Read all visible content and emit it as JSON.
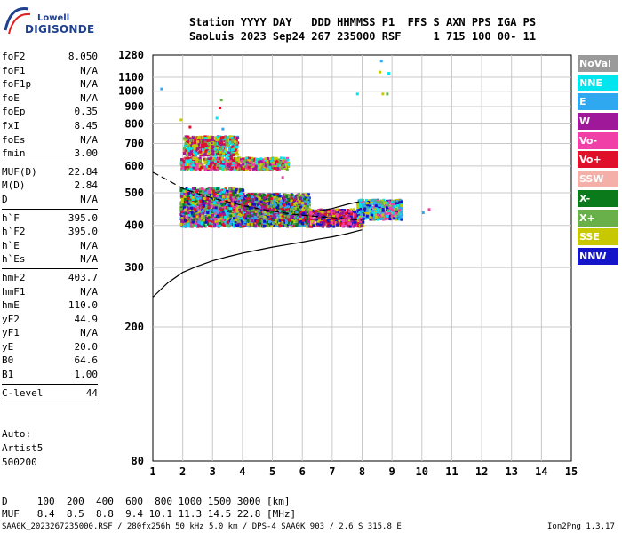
{
  "logo": {
    "line1": "Lowell",
    "line2": "DIGISONDE"
  },
  "header": {
    "line1": "Station YYYY DAY   DDD HHMMSS P1  FFS S AXN PPS IGA PS",
    "line2": "SaoLuis 2023 Sep24 267 235000 RSF     1 715 100 00- 11"
  },
  "params": [
    {
      "name": "foF2",
      "value": "8.050"
    },
    {
      "name": "foF1",
      "value": "N/A"
    },
    {
      "name": "foF1p",
      "value": "N/A"
    },
    {
      "name": "foE",
      "value": "N/A"
    },
    {
      "name": "foEp",
      "value": "0.35"
    },
    {
      "name": "fxI",
      "value": "8.45"
    },
    {
      "name": "foEs",
      "value": "N/A"
    },
    {
      "name": "fmin",
      "value": "3.00"
    },
    {
      "sep": true
    },
    {
      "name": "MUF(D)",
      "value": "22.84"
    },
    {
      "name": "M(D)",
      "value": "2.84"
    },
    {
      "name": "D",
      "value": "N/A"
    },
    {
      "sep": true
    },
    {
      "name": "h`F",
      "value": "395.0"
    },
    {
      "name": "h`F2",
      "value": "395.0"
    },
    {
      "name": "h`E",
      "value": "N/A"
    },
    {
      "name": "h`Es",
      "value": "N/A"
    },
    {
      "sep": true
    },
    {
      "name": "hmF2",
      "value": "403.7"
    },
    {
      "name": "hmF1",
      "value": "N/A"
    },
    {
      "name": "hmE",
      "value": "110.0"
    },
    {
      "name": "yF2",
      "value": "44.9"
    },
    {
      "name": "yF1",
      "value": "N/A"
    },
    {
      "name": "yE",
      "value": "20.0"
    },
    {
      "name": "B0",
      "value": "64.6"
    },
    {
      "name": "B1",
      "value": "1.00"
    },
    {
      "sep": true
    },
    {
      "name": "C-level",
      "value": "44"
    },
    {
      "sep": true
    }
  ],
  "autoscale": {
    "line1": "Auto:",
    "line2": "Artist5",
    "line3": "500200"
  },
  "legend": [
    {
      "label": "NoVal",
      "color": "#9a9a9a"
    },
    {
      "label": "NNE",
      "color": "#00e5ee"
    },
    {
      "label": "E",
      "color": "#30a8f0"
    },
    {
      "label": "W",
      "color": "#a0189a"
    },
    {
      "label": "Vo-",
      "color": "#f040a8"
    },
    {
      "label": "Vo+",
      "color": "#e0102a"
    },
    {
      "label": "SSW",
      "color": "#f4b0a8"
    },
    {
      "label": "X-",
      "color": "#0a7a1a"
    },
    {
      "label": "X+",
      "color": "#6ab04a"
    },
    {
      "label": "SSE",
      "color": "#c8c800"
    },
    {
      "label": "NNW",
      "color": "#1414c8"
    }
  ],
  "footer": {
    "d_row": "D     100  200  400  600  800 1000 1500 3000 [km]",
    "muf_row": "MUF   8.4  8.5  8.8  9.4 10.1 11.3 14.5 22.8 [MHz]",
    "info": "SAA0K_2023267235000.RSF / 280fx256h 50 kHz 5.0 km / DPS-4 SAA0K 903 / 2.6 S 315.8 E",
    "version": "Ion2Png 1.3.17"
  },
  "chart_data": {
    "type": "scatter",
    "title": "",
    "xlabel": "",
    "ylabel": "",
    "xlim": [
      1,
      15
    ],
    "ylim": [
      80,
      1280
    ],
    "yscale": "log",
    "x_ticks": [
      1,
      2,
      3,
      4,
      5,
      6,
      7,
      8,
      9,
      10,
      11,
      12,
      13,
      14,
      15
    ],
    "y_ticks": [
      80,
      200,
      300,
      400,
      500,
      600,
      700,
      800,
      900,
      1000,
      1100,
      1280
    ],
    "grid": true,
    "clusters": [
      {
        "x": [
          1.9,
          4.0
        ],
        "y": [
          400,
          520
        ],
        "colors": [
          "Vo-",
          "Vo+",
          "X-",
          "X+",
          "SSE",
          "NNW",
          "W",
          "NNE",
          "E"
        ]
      },
      {
        "x": [
          4.0,
          6.2
        ],
        "y": [
          400,
          500
        ],
        "colors": [
          "Vo+",
          "X+",
          "SSE",
          "NNW",
          "W",
          "E",
          "X-"
        ]
      },
      {
        "x": [
          6.2,
          8.0
        ],
        "y": [
          400,
          450
        ],
        "colors": [
          "Vo+",
          "Vo-",
          "W",
          "NNW",
          "SSE"
        ]
      },
      {
        "x": [
          7.8,
          9.3
        ],
        "y": [
          420,
          480
        ],
        "colors": [
          "E",
          "NNE",
          "X+",
          "Vo-",
          "NNW",
          "SSE"
        ]
      },
      {
        "x": [
          1.9,
          5.5
        ],
        "y": [
          590,
          640
        ],
        "colors": [
          "Vo-",
          "W",
          "SSE",
          "X+",
          "NNE",
          "Vo+"
        ]
      },
      {
        "x": [
          2.0,
          3.8
        ],
        "y": [
          650,
          740
        ],
        "colors": [
          "Vo+",
          "SSE",
          "X+",
          "NNE",
          "W"
        ]
      }
    ],
    "curves": [
      {
        "name": "solid",
        "points": [
          [
            1.0,
            245
          ],
          [
            1.5,
            270
          ],
          [
            2.0,
            290
          ],
          [
            2.5,
            303
          ],
          [
            3.0,
            314
          ],
          [
            3.5,
            323
          ],
          [
            4.0,
            331
          ],
          [
            4.5,
            338
          ],
          [
            5.0,
            345
          ],
          [
            5.5,
            351
          ],
          [
            6.0,
            357
          ],
          [
            6.5,
            364
          ],
          [
            7.0,
            370
          ],
          [
            7.5,
            378
          ],
          [
            8.0,
            388
          ]
        ]
      },
      {
        "name": "dashed",
        "points": [
          [
            1.0,
            575
          ],
          [
            1.5,
            545
          ],
          [
            2.0,
            515
          ],
          [
            2.5,
            497
          ],
          [
            3.0,
            482
          ],
          [
            3.5,
            470
          ],
          [
            4.0,
            458
          ],
          [
            4.5,
            449
          ],
          [
            5.0,
            441
          ],
          [
            5.5,
            434
          ],
          [
            6.0,
            429
          ],
          [
            6.5,
            425
          ],
          [
            7.0,
            422
          ],
          [
            7.5,
            418
          ],
          [
            8.0,
            414
          ]
        ]
      },
      {
        "name": "solid-branch",
        "points": [
          [
            6.5,
            440
          ],
          [
            7.0,
            449
          ],
          [
            7.5,
            462
          ],
          [
            7.9,
            470
          ]
        ]
      }
    ]
  }
}
